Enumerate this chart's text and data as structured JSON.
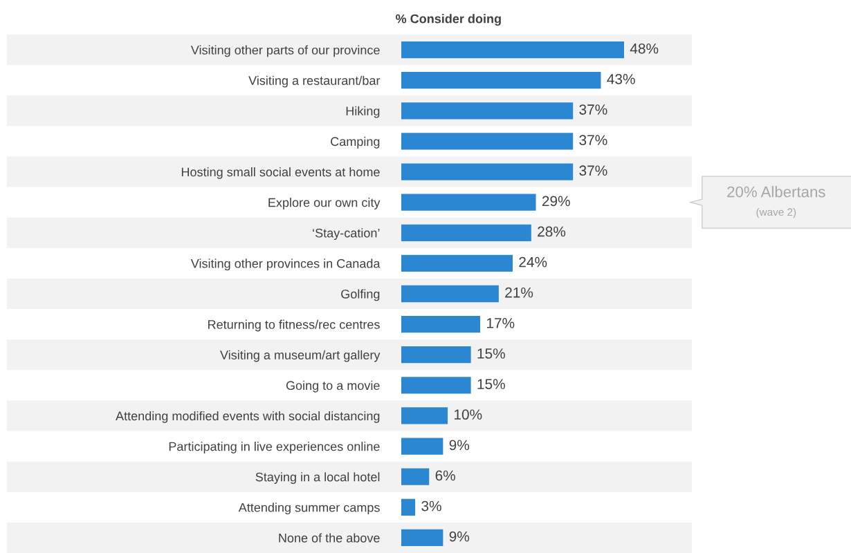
{
  "chart_data": {
    "type": "bar",
    "orientation": "horizontal",
    "title": "% Consider doing",
    "categories": [
      "Visiting other parts of our province",
      "Visiting a restaurant/bar",
      "Hiking",
      "Camping",
      "Hosting small social events at home",
      "Explore our own city",
      "‘Stay-cation’",
      "Visiting other provinces in Canada",
      "Golfing",
      "Returning to fitness/rec centres",
      "Visiting a museum/art gallery",
      "Going to a movie",
      "Attending modified events with social distancing",
      "Participating in live experiences online",
      "Staying in a local hotel",
      "Attending summer camps",
      "None of the above"
    ],
    "values": [
      48,
      43,
      37,
      37,
      37,
      29,
      28,
      24,
      21,
      17,
      15,
      15,
      10,
      9,
      6,
      3,
      9
    ],
    "value_labels": [
      "48%",
      "43%",
      "37%",
      "37%",
      "37%",
      "29%",
      "28%",
      "24%",
      "21%",
      "17%",
      "15%",
      "15%",
      "10%",
      "9%",
      "6%",
      "3%",
      "9%"
    ],
    "color": "#2b87d1",
    "tick_labels": "y",
    "grid": false,
    "annotations": [
      "20% Albertans",
      "(wave 2)"
    ]
  }
}
